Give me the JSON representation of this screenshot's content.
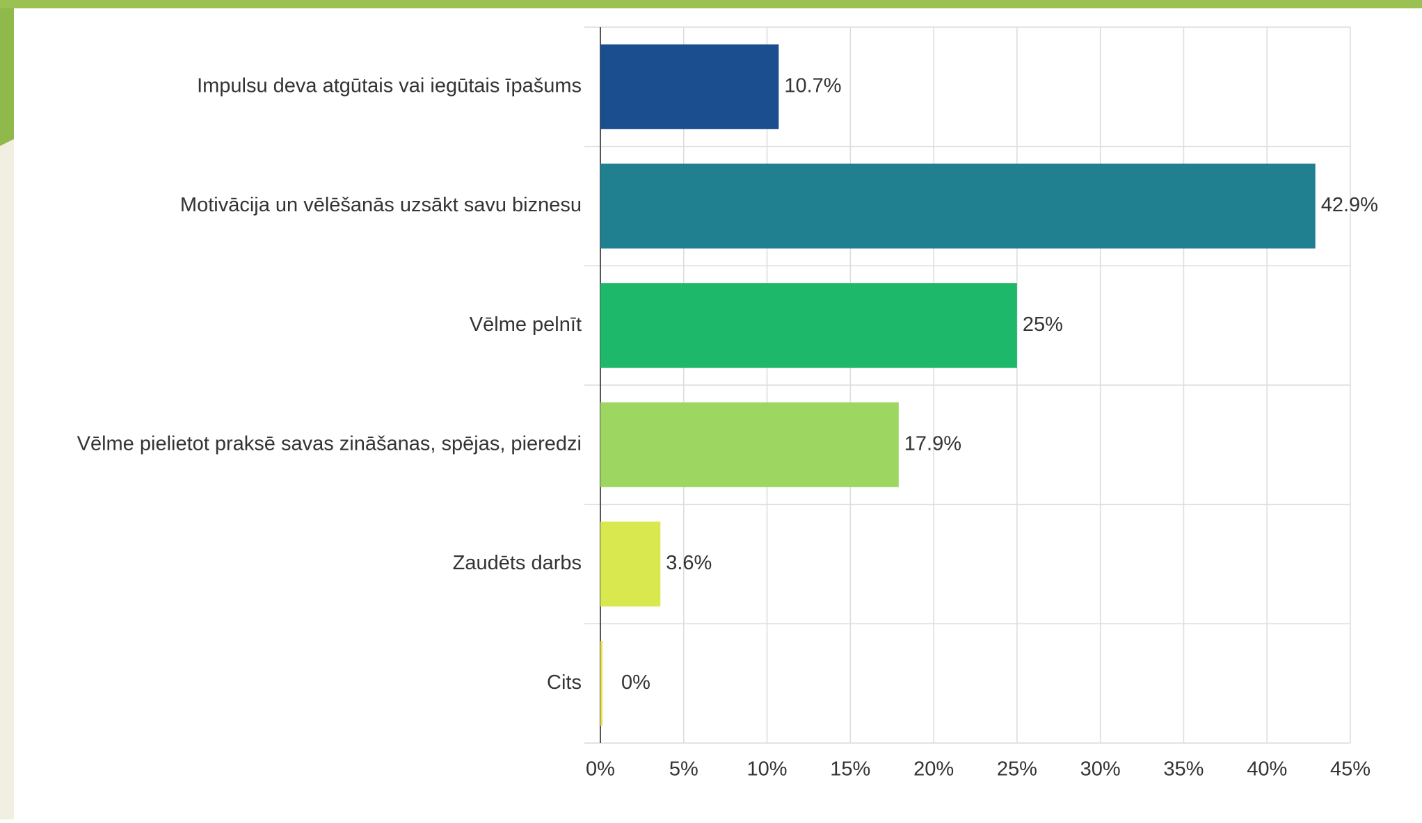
{
  "chart_data": {
    "type": "bar",
    "orientation": "horizontal",
    "categories": [
      "Impulsu deva atgūtais vai iegūtais īpašums",
      "Motivācija un vēlēšanās uzsākt savu biznesu",
      "Vēlme pelnīt",
      "Vēlme pielietot praksē savas zināšanas, spējas, pieredzi",
      "Zaudēts darbs",
      "Cits"
    ],
    "values": [
      10.7,
      42.9,
      25,
      17.9,
      3.6,
      0
    ],
    "value_labels": [
      "10.7%",
      "42.9%",
      "25%",
      "17.9%",
      "3.6%",
      "0%"
    ],
    "colors": [
      "#1a4e8f",
      "#21808f",
      "#1eb86a",
      "#9dd660",
      "#d9e84e",
      "#e8e04a"
    ],
    "xlim": [
      0,
      45
    ],
    "xticks": [
      {
        "value": 0,
        "label": "0%"
      },
      {
        "value": 5,
        "label": "5%"
      },
      {
        "value": 10,
        "label": "10%"
      },
      {
        "value": 15,
        "label": "15%"
      },
      {
        "value": 20,
        "label": "20%"
      },
      {
        "value": 25,
        "label": "25%"
      },
      {
        "value": 30,
        "label": "30%"
      },
      {
        "value": 35,
        "label": "35%"
      },
      {
        "value": 40,
        "label": "40%"
      },
      {
        "value": 45,
        "label": "45%"
      }
    ],
    "grid": true
  }
}
